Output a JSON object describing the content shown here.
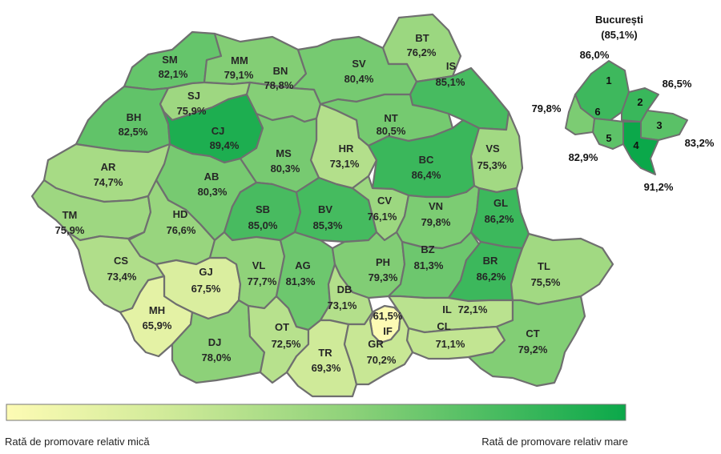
{
  "map": {
    "counties": [
      {
        "code": "SM",
        "value": "82,1%",
        "rate": 82.1
      },
      {
        "code": "MM",
        "value": "79,1%",
        "rate": 79.1
      },
      {
        "code": "BT",
        "value": "76,2%",
        "rate": 76.2
      },
      {
        "code": "SV",
        "value": "80,4%",
        "rate": 80.4
      },
      {
        "code": "IS",
        "value": "85,1%",
        "rate": 85.1
      },
      {
        "code": "BH",
        "value": "82,5%",
        "rate": 82.5
      },
      {
        "code": "SJ",
        "value": "75,9%",
        "rate": 75.9
      },
      {
        "code": "BN",
        "value": "78,8%",
        "rate": 78.8
      },
      {
        "code": "CJ",
        "value": "89,4%",
        "rate": 89.4
      },
      {
        "code": "NT",
        "value": "80,5%",
        "rate": 80.5
      },
      {
        "code": "HR",
        "value": "73,1%",
        "rate": 73.1
      },
      {
        "code": "MS",
        "value": "80,3%",
        "rate": 80.3
      },
      {
        "code": "BC",
        "value": "86,4%",
        "rate": 86.4
      },
      {
        "code": "VS",
        "value": "75,3%",
        "rate": 75.3
      },
      {
        "code": "AR",
        "value": "74,7%",
        "rate": 74.7
      },
      {
        "code": "AB",
        "value": "80,3%",
        "rate": 80.3
      },
      {
        "code": "TM",
        "value": "75,9%",
        "rate": 75.9
      },
      {
        "code": "HD",
        "value": "76,6%",
        "rate": 76.6
      },
      {
        "code": "SB",
        "value": "85,0%",
        "rate": 85.0
      },
      {
        "code": "BV",
        "value": "85,3%",
        "rate": 85.3
      },
      {
        "code": "CV",
        "value": "76,1%",
        "rate": 76.1
      },
      {
        "code": "VN",
        "value": "79,8%",
        "rate": 79.8
      },
      {
        "code": "GL",
        "value": "86,2%",
        "rate": 86.2
      },
      {
        "code": "CS",
        "value": "73,4%",
        "rate": 73.4
      },
      {
        "code": "GJ",
        "value": "67,5%",
        "rate": 67.5
      },
      {
        "code": "VL",
        "value": "77,7%",
        "rate": 77.7
      },
      {
        "code": "AG",
        "value": "81,3%",
        "rate": 81.3
      },
      {
        "code": "PH",
        "value": "79,3%",
        "rate": 79.3
      },
      {
        "code": "BZ",
        "value": "81,3%",
        "rate": 81.3
      },
      {
        "code": "BR",
        "value": "86,2%",
        "rate": 86.2
      },
      {
        "code": "TL",
        "value": "75,5%",
        "rate": 75.5
      },
      {
        "code": "MH",
        "value": "65,9%",
        "rate": 65.9
      },
      {
        "code": "DB",
        "value": "73,1%",
        "rate": 73.1
      },
      {
        "code": "DJ",
        "value": "78,0%",
        "rate": 78.0
      },
      {
        "code": "OT",
        "value": "72,5%",
        "rate": 72.5
      },
      {
        "code": "IL",
        "value": "72,1%",
        "rate": 72.1
      },
      {
        "code": "IF",
        "value": "61,5%",
        "rate": 61.5
      },
      {
        "code": "CL",
        "value": "71,1%",
        "rate": 71.1
      },
      {
        "code": "TR",
        "value": "69,3%",
        "rate": 69.3
      },
      {
        "code": "GR",
        "value": "70,2%",
        "rate": 70.2
      },
      {
        "code": "CT",
        "value": "79,2%",
        "rate": 79.2
      }
    ]
  },
  "bucharest": {
    "title": "București",
    "total": "(85,1%)",
    "sectors": [
      {
        "label": "1",
        "value": "86,0%",
        "rate": 86.0
      },
      {
        "label": "2",
        "value": "86,5%",
        "rate": 86.5
      },
      {
        "label": "3",
        "value": "83,2%",
        "rate": 83.2
      },
      {
        "label": "4",
        "value": "91,2%",
        "rate": 91.2
      },
      {
        "label": "5",
        "value": "82,9%",
        "rate": 82.9
      },
      {
        "label": "6",
        "value": "79,8%",
        "rate": 79.8
      }
    ]
  },
  "legend": {
    "min_label": "Rată de promovare relativ mică",
    "max_label": "Rată de promovare relativ mare",
    "color_low": "#fdfbb4",
    "color_high": "#0ba84a"
  },
  "style": {
    "border_color": "#6f6f6f",
    "scale_min": 61.5,
    "scale_max": 91.2
  }
}
